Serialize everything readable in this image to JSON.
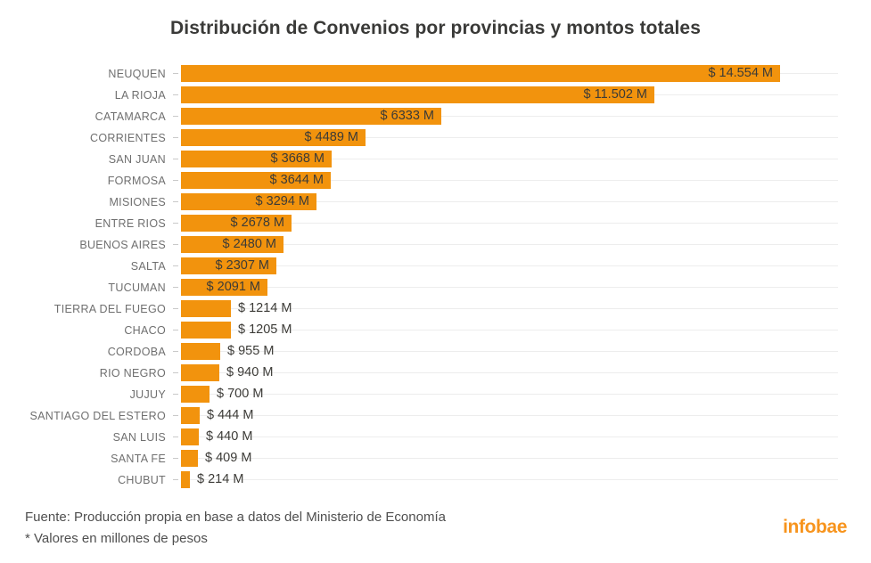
{
  "title": "Distribución de Convenios por provincias y montos totales",
  "footer": {
    "source": "Fuente: Producción propia en base a datos del Ministerio de Economía",
    "note": "* Valores en millones de pesos",
    "brand": "infobae"
  },
  "colors": {
    "bar": "#F2930D",
    "title_text": "#3A3A38",
    "category_label": "#6F6F6F",
    "value_label": "#3C3B37",
    "gridline": "#EDEDED",
    "tick": "#C9C9C9",
    "brand_orange": "#F7941D",
    "background": "#FFFFFF"
  },
  "chart_data": {
    "type": "bar",
    "orientation": "horizontal",
    "title": "Distribución de Convenios por provincias y montos totales",
    "categories": [
      "NEUQUEN",
      "LA RIOJA",
      "CATAMARCA",
      "CORRIENTES",
      "SAN JUAN",
      "FORMOSA",
      "MISIONES",
      "ENTRE RIOS",
      "BUENOS AIRES",
      "SALTA",
      "TUCUMAN",
      "TIERRA DEL FUEGO",
      "CHACO",
      "CORDOBA",
      "RIO NEGRO",
      "JUJUY",
      "SANTIAGO DEL ESTERO",
      "SAN LUIS",
      "SANTA FE",
      "CHUBUT"
    ],
    "values": [
      14554,
      11502,
      6333,
      4489,
      3668,
      3644,
      3294,
      2678,
      2480,
      2307,
      2091,
      1214,
      1205,
      955,
      940,
      700,
      444,
      440,
      409,
      214
    ],
    "value_labels": [
      "$ 14.554 M",
      "$ 11.502 M",
      "$ 6333 M",
      "$ 4489 M",
      "$ 3668 M",
      "$ 3644 M",
      "$ 3294 M",
      "$ 2678 M",
      "$ 2480 M",
      "$ 2307 M",
      "$ 2091 M",
      "$ 1214 M",
      "$ 1205 M",
      "$ 955 M",
      "$ 940 M",
      "$ 700 M",
      "$ 444 M",
      "$ 440 M",
      "$ 409 M",
      "$ 214 M"
    ],
    "xlabel": "",
    "ylabel": "",
    "xlim": [
      0,
      16000
    ],
    "unit": "millones de pesos",
    "grid": "light horizontal row lines",
    "legend": "none",
    "bar_color": "#F2930D"
  }
}
